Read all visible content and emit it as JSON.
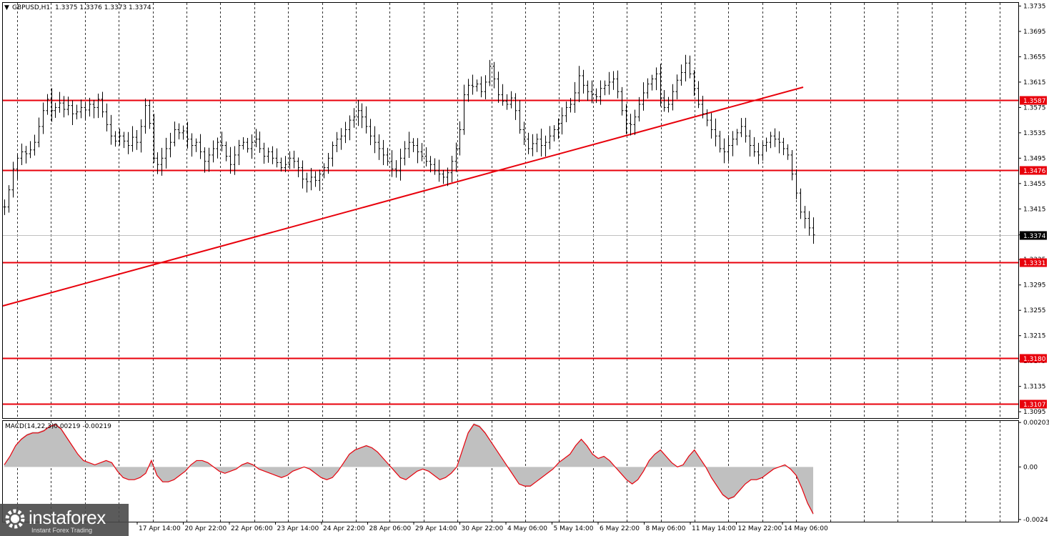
{
  "header": {
    "symbol": "GBPUSD,H1",
    "quote": "1.3375 1.3376 1.3373 1.3374"
  },
  "macd_header": {
    "label": "MACD(14,22,3)",
    "values": "-0.00219 -0.00219"
  },
  "logo": {
    "brand": "instaforex",
    "tagline": "Instant Forex Trading"
  },
  "colors": {
    "level_line": "#e8000b",
    "trend_line": "#e8000b",
    "bars": "#000000",
    "macd_hist": "#c0c0c0",
    "macd_signal": "#e8000b",
    "current_price_tag": "#000000"
  },
  "chart_data": [
    {
      "type": "line",
      "description_of_type": "OHLC bars approximated as close series",
      "y_ticks": [
        "1.3735",
        "1.3695",
        "1.3655",
        "1.3615",
        "1.3575",
        "1.3535",
        "1.3495",
        "1.3455",
        "1.3415",
        "1.3374",
        "1.3335",
        "1.3295",
        "1.3255",
        "1.3215",
        "1.3175",
        "1.3135",
        "1.3095"
      ],
      "y_range": [
        1.3085,
        1.374
      ],
      "x_labels": [
        "17 Apr 14:00",
        "20 Apr 22:00",
        "22 Apr 06:00",
        "23 Apr 14:00",
        "24 Apr 22:00",
        "28 Apr 06:00",
        "29 Apr 14:00",
        "30 Apr 22:00",
        "4 May 06:00",
        "5 May 14:00",
        "6 May 22:00",
        "8 May 06:00",
        "11 May 14:00",
        "12 May 22:00",
        "14 May 06:00"
      ],
      "levels": [
        {
          "label": "1.3587",
          "value": 1.3587
        },
        {
          "label": "1.3476",
          "value": 1.3476
        },
        {
          "label": "1.3331",
          "value": 1.3331
        },
        {
          "label": "1.3180",
          "value": 1.318
        },
        {
          "label": "1.3107",
          "value": 1.3107
        }
      ],
      "current_price": {
        "label": "1.3374",
        "value": 1.3374
      },
      "trendline": {
        "start": 1.3262,
        "end": 1.3607
      },
      "series": [
        {
          "values": [
            1.3418,
            1.3445,
            1.3478,
            1.3495,
            1.3505,
            1.3502,
            1.3508,
            1.352,
            1.3545,
            1.357,
            1.3588,
            1.357,
            1.3575,
            1.3582,
            1.3572,
            1.3578,
            1.3565,
            1.3568,
            1.3575,
            1.3571,
            1.358,
            1.3575,
            1.3588,
            1.3568,
            1.3548,
            1.353,
            1.3522,
            1.353,
            1.3522,
            1.3515,
            1.3528,
            1.352,
            1.3545,
            1.3578,
            1.355,
            1.3495,
            1.3485,
            1.3495,
            1.351,
            1.352,
            1.354,
            1.3535,
            1.3538,
            1.3525,
            1.3515,
            1.352,
            1.3505,
            1.349,
            1.35,
            1.351,
            1.352,
            1.3515,
            1.3498,
            1.3485,
            1.35,
            1.3515,
            1.352,
            1.351,
            1.352,
            1.3525,
            1.351,
            1.3498,
            1.3505,
            1.3495,
            1.3488,
            1.348,
            1.3485,
            1.3495,
            1.349,
            1.348,
            1.3462,
            1.3458,
            1.3465,
            1.346,
            1.347,
            1.348,
            1.3495,
            1.3515,
            1.3525,
            1.353,
            1.354,
            1.3555,
            1.356,
            1.357,
            1.356,
            1.3545,
            1.353,
            1.352,
            1.351,
            1.35,
            1.349,
            1.3478,
            1.3475,
            1.3495,
            1.351,
            1.352,
            1.3515,
            1.3505,
            1.3498,
            1.349,
            1.3485,
            1.3475,
            1.347,
            1.3465,
            1.3472,
            1.349,
            1.351,
            1.354,
            1.3595,
            1.361,
            1.3608,
            1.3612,
            1.36,
            1.3615,
            1.364,
            1.362,
            1.3595,
            1.3585,
            1.358,
            1.359,
            1.357,
            1.354,
            1.3525,
            1.351,
            1.3518,
            1.3525,
            1.3515,
            1.352,
            1.353,
            1.354,
            1.355,
            1.3562,
            1.3575,
            1.358,
            1.3598,
            1.3625,
            1.361,
            1.36,
            1.3595,
            1.3592,
            1.3605,
            1.361,
            1.3615,
            1.362,
            1.36,
            1.357,
            1.355,
            1.3548,
            1.356,
            1.358,
            1.3598,
            1.3612,
            1.362,
            1.3628,
            1.359,
            1.3575,
            1.358,
            1.36,
            1.3618,
            1.363,
            1.3645,
            1.3628,
            1.3605,
            1.358,
            1.3565,
            1.3555,
            1.354,
            1.353,
            1.351,
            1.3505,
            1.3515,
            1.3525,
            1.3535,
            1.3545,
            1.353,
            1.3515,
            1.3505,
            1.35,
            1.3515,
            1.352,
            1.353,
            1.3525,
            1.352,
            1.351,
            1.35,
            1.347,
            1.344,
            1.341,
            1.34,
            1.3385,
            1.3374
          ]
        }
      ]
    },
    {
      "type": "area",
      "title": "MACD(14,22,3)",
      "y_ticks": [
        "0.00203",
        "0.00",
        "-0.0024"
      ],
      "y_range": [
        -0.0025,
        0.0021
      ],
      "series": [
        {
          "values": [
            0.0001,
            0.0005,
            0.001,
            0.0013,
            0.0015,
            0.0016,
            0.0016,
            0.0017,
            0.0019,
            0.002,
            0.0018,
            0.0014,
            0.001,
            0.0006,
            0.0003,
            0.0002,
            0.0001,
            0.0002,
            0.0003,
            0.0002,
            -0.0002,
            -0.0005,
            -0.0006,
            -0.0006,
            -0.0005,
            -0.0003,
            0.0003,
            -0.0004,
            -0.0007,
            -0.0007,
            -0.0006,
            -0.0004,
            -0.0002,
            0.0001,
            0.0003,
            0.0003,
            0.0002,
            0.0,
            -0.0002,
            -0.0003,
            -0.0002,
            -0.0001,
            0.0001,
            0.0002,
            0.0001,
            -0.0001,
            -0.0002,
            -0.0003,
            -0.0004,
            -0.0005,
            -0.0004,
            -0.0002,
            -0.0001,
            0.0,
            -0.0001,
            -0.0003,
            -0.0005,
            -0.0006,
            -0.0005,
            -0.0002,
            0.0002,
            0.0006,
            0.0008,
            0.0009,
            0.001,
            0.0009,
            0.0007,
            0.0004,
            0.0001,
            -0.0002,
            -0.0005,
            -0.0006,
            -0.0004,
            -0.0002,
            -0.0001,
            -0.0002,
            -0.0004,
            -0.0006,
            -0.0005,
            -0.0003,
            0.0,
            0.0008,
            0.0016,
            0.002,
            0.0019,
            0.0016,
            0.0012,
            0.0008,
            0.0004,
            0.0,
            -0.0004,
            -0.0008,
            -0.0009,
            -0.0009,
            -0.0007,
            -0.0005,
            -0.0003,
            -0.0001,
            0.0002,
            0.0004,
            0.0006,
            0.001,
            0.0013,
            0.001,
            0.0006,
            0.0004,
            0.0005,
            0.0003,
            0.0,
            -0.0003,
            -0.0006,
            -0.0008,
            -0.0006,
            -0.0002,
            0.0003,
            0.0006,
            0.0008,
            0.0005,
            0.0002,
            0.0,
            0.0001,
            0.0005,
            0.0008,
            0.0004,
            0.0,
            -0.0005,
            -0.0009,
            -0.0013,
            -0.0015,
            -0.0014,
            -0.0011,
            -0.0008,
            -0.0006,
            -0.0006,
            -0.0005,
            -0.0003,
            -0.0001,
            0.0,
            0.0001,
            -0.0001,
            -0.0004,
            -0.001,
            -0.0017,
            -0.0022
          ]
        }
      ]
    }
  ]
}
